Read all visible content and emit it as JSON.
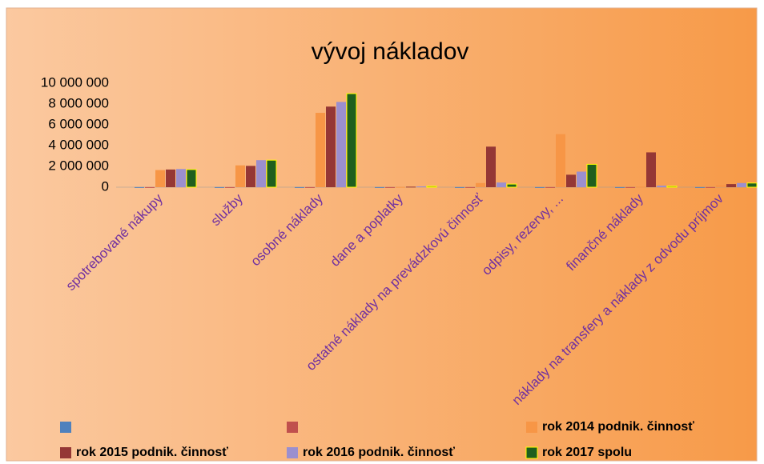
{
  "chart_data": {
    "type": "bar",
    "title": "vývoj nákladov",
    "categories": [
      "spotrebované nákupy",
      "služby",
      "osobné náklady",
      "dane a poplatky",
      "ostatné náklady na prevádzkovú činnosť",
      "odpisy, rezervy, ...",
      "finančné náklady",
      "náklady na transfery a náklady z odvodu príjmov"
    ],
    "series": [
      {
        "color": "#4f81bd",
        "values": [
          10000,
          10000,
          10000,
          10000,
          10000,
          10000,
          10000,
          10000
        ]
      },
      {
        "color": "#c0504d",
        "values": [
          10000,
          10000,
          10000,
          10000,
          10000,
          10000,
          10000,
          10000
        ]
      },
      {
        "name": "rok 2014 podnik. činnosť",
        "color": "#f79646",
        "values": [
          1650000,
          2100000,
          7150000,
          30000,
          400000,
          5100000,
          50000,
          200000
        ]
      },
      {
        "name": "rok 2015 podnik. činnosť",
        "color": "#953735",
        "values": [
          1700000,
          2050000,
          7750000,
          50000,
          3900000,
          1200000,
          3350000,
          300000
        ]
      },
      {
        "name": "rok 2016 podnik. činnosť",
        "color": "#9b8fce",
        "values": [
          1750000,
          2600000,
          8200000,
          80000,
          450000,
          1500000,
          150000,
          400000
        ]
      },
      {
        "name": "rok 2017 spolu",
        "color": "#1e5f1e",
        "values": [
          1700000,
          2600000,
          9000000,
          100000,
          300000,
          2200000,
          100000,
          400000
        ]
      }
    ],
    "ylim": [
      0,
      10000000
    ],
    "yticks": [
      0,
      {
        "value": 2000000,
        "label": "2 000 000"
      },
      {
        "value": 4000000,
        "label": "4 000 000"
      },
      {
        "value": 6000000,
        "label": "6 000 000"
      },
      {
        "value": 8000000,
        "label": "8 000 000"
      },
      {
        "value": 10000000,
        "label": "10 000 000"
      }
    ]
  }
}
